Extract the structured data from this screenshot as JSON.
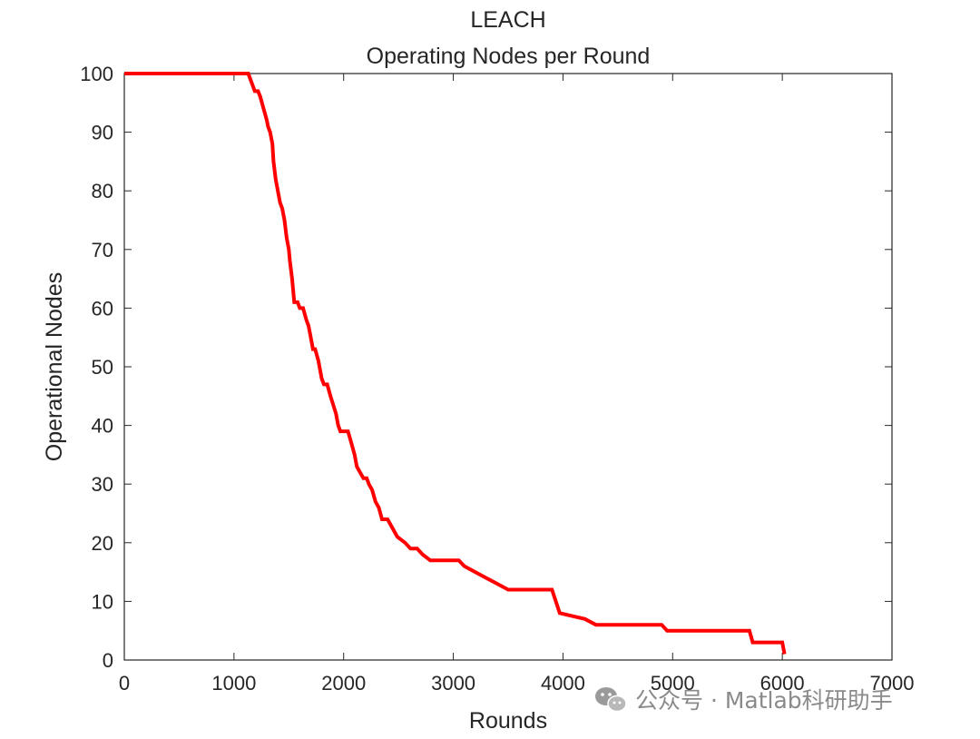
{
  "chart_data": {
    "type": "line",
    "title": "LEACH",
    "subtitle": "Operating Nodes per Round",
    "xlabel": "Rounds",
    "ylabel": "Operational Nodes",
    "xlim": [
      0,
      7000
    ],
    "ylim": [
      0,
      100
    ],
    "xticks": [
      0,
      1000,
      2000,
      3000,
      4000,
      5000,
      6000,
      7000
    ],
    "yticks": [
      0,
      10,
      20,
      30,
      40,
      50,
      60,
      70,
      80,
      90,
      100
    ],
    "grid": false,
    "line_color": "#ff0000",
    "series": [
      {
        "x": [
          0,
          1130,
          1150,
          1170,
          1190,
          1220,
          1240,
          1270,
          1300,
          1310,
          1330,
          1350,
          1360,
          1380,
          1390,
          1400,
          1420,
          1440,
          1460,
          1480,
          1500,
          1510,
          1530,
          1550,
          1580,
          1600,
          1630,
          1660,
          1680,
          1700,
          1720,
          1740,
          1770,
          1800,
          1820,
          1850,
          1880,
          1930,
          1950,
          1970,
          2040,
          2070,
          2100,
          2120,
          2150,
          2180,
          2210,
          2230,
          2260,
          2290,
          2320,
          2350,
          2380,
          2400,
          2460,
          2490,
          2560,
          2610,
          2670,
          2720,
          2790,
          3050,
          3100,
          3200,
          3300,
          3400,
          3500,
          3900,
          3970,
          4200,
          4300,
          4900,
          4950,
          5700,
          5730,
          6000,
          6020
        ],
        "y": [
          100,
          100,
          99,
          98,
          97,
          97,
          96,
          94,
          92,
          91,
          90,
          88,
          85,
          82,
          81,
          80,
          78,
          77,
          75,
          72,
          70,
          68,
          65,
          61,
          61,
          60,
          60,
          58,
          57,
          55,
          53,
          53,
          51,
          48,
          47,
          47,
          45,
          42,
          40,
          39,
          39,
          37,
          35,
          33,
          32,
          31,
          31,
          30,
          29,
          27,
          26,
          24,
          24,
          24,
          22,
          21,
          20,
          19,
          19,
          18,
          17,
          17,
          16,
          15,
          14,
          13,
          12,
          12,
          8,
          7,
          6,
          6,
          5,
          5,
          3,
          3,
          1
        ]
      }
    ]
  },
  "watermark": {
    "icon": "wechat-icon",
    "text": "公众号 · Matlab科研助手"
  }
}
